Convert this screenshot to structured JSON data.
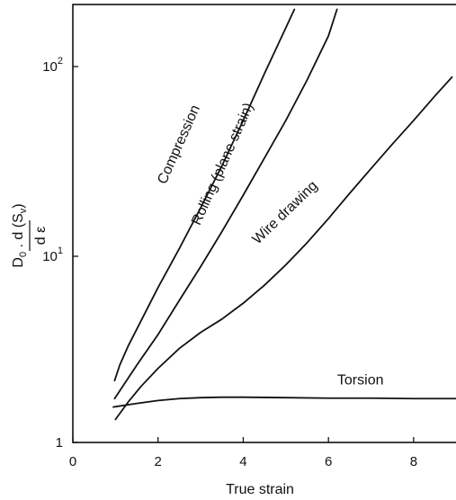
{
  "chart_data": {
    "type": "line",
    "title": "",
    "xlabel": "True strain",
    "ylabel": {
      "main": "D",
      "sub0": "0",
      "mid": " . d (S",
      "subv": "v",
      "close": ")",
      "denominator": "d ε"
    },
    "xlim": [
      0,
      9.1
    ],
    "ylim": [
      1,
      200
    ],
    "yscale": "log",
    "grid": false,
    "legend": "none",
    "x_ticks": [
      {
        "value": 0,
        "label": "0"
      },
      {
        "value": 2,
        "label": "2"
      },
      {
        "value": 4,
        "label": "4"
      },
      {
        "value": 6,
        "label": "6"
      },
      {
        "value": 8,
        "label": "8"
      }
    ],
    "y_ticks": [
      {
        "value": 1,
        "base": "1",
        "exp": ""
      },
      {
        "value": 10,
        "base": "10",
        "exp": "1"
      },
      {
        "value": 100,
        "base": "10",
        "exp": "2"
      }
    ],
    "series": [
      {
        "name": "Compression",
        "x": [
          0.98,
          1.1,
          1.3,
          1.6,
          2.0,
          2.5,
          3.0,
          3.5,
          4.0,
          4.5,
          5.0,
          5.2
        ],
        "y": [
          2.15,
          2.6,
          3.3,
          4.5,
          6.8,
          11.0,
          18.0,
          30.0,
          52.0,
          92.0,
          160.0,
          200.0
        ]
      },
      {
        "name": "Rolling (plane strain)",
        "x": [
          0.98,
          1.2,
          1.5,
          2.0,
          2.5,
          3.0,
          3.5,
          4.0,
          4.5,
          5.0,
          5.5,
          6.0,
          6.2
        ],
        "y": [
          1.72,
          2.05,
          2.6,
          3.8,
          5.8,
          8.8,
          13.5,
          21.0,
          33.0,
          52.0,
          85.0,
          145.0,
          200.0
        ]
      },
      {
        "name": "Wire drawing",
        "x": [
          1.0,
          1.3,
          1.6,
          2.0,
          2.5,
          3.0,
          3.5,
          4.0,
          4.5,
          5.0,
          5.5,
          6.0,
          6.5,
          7.0,
          7.5,
          8.0,
          8.5,
          8.9
        ],
        "y": [
          1.33,
          1.65,
          2.0,
          2.5,
          3.2,
          3.9,
          4.6,
          5.6,
          7.0,
          9.0,
          11.8,
          15.8,
          21.5,
          29.0,
          39.0,
          52.0,
          70.0,
          88.0
        ]
      },
      {
        "name": "Torsion",
        "x": [
          0.95,
          1.5,
          2.0,
          2.5,
          3.0,
          3.5,
          4.0,
          5.0,
          6.0,
          7.0,
          8.0,
          9.1
        ],
        "y": [
          1.55,
          1.62,
          1.68,
          1.72,
          1.74,
          1.75,
          1.75,
          1.74,
          1.73,
          1.73,
          1.72,
          1.72
        ]
      }
    ],
    "annotations": [
      {
        "series": "Compression",
        "text": "Compression"
      },
      {
        "series": "Rolling (plane strain)",
        "text": "Rolling (plane strain)"
      },
      {
        "series": "Wire drawing",
        "text": "Wire drawing"
      },
      {
        "series": "Torsion",
        "text": "Torsion"
      }
    ]
  }
}
